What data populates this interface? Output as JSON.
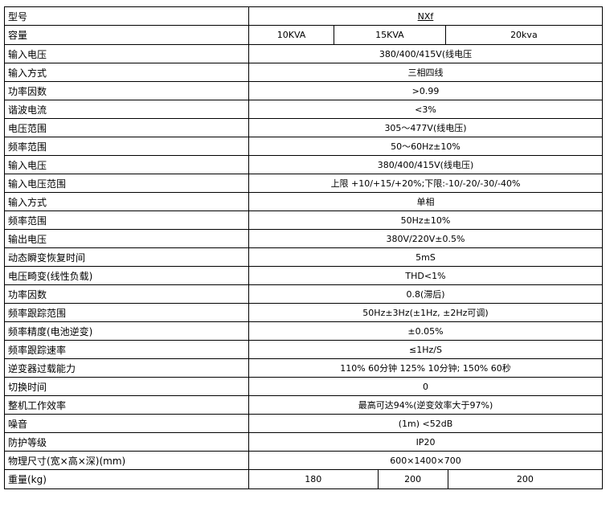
{
  "rows": [
    {
      "label": "型号",
      "value": "NXf"
    },
    {
      "label": "容量",
      "values": [
        "10KVA",
        "15KVA",
        "20kva"
      ]
    },
    {
      "label": "输入电压",
      "value": "380/400/415V(线电压"
    },
    {
      "label": "输入方式",
      "value": "三相四线"
    },
    {
      "label": "功率因数",
      "value": ">0.99"
    },
    {
      "label": "谐波电流",
      "value": "<3%"
    },
    {
      "label": "电压范围",
      "value": "305～477V(线电压)"
    },
    {
      "label": "频率范围",
      "value": "50～60Hz±10%"
    },
    {
      "label": "输入电压",
      "value": "380/400/415V(线电压)"
    },
    {
      "label": "输入电压范围",
      "value": "上限 +10/+15/+20%;下限:-10/-20/-30/-40%"
    },
    {
      "label": "输入方式",
      "value": "单相"
    },
    {
      "label": "频率范围",
      "value": "50Hz±10%"
    },
    {
      "label": "输出电压",
      "value": "380V/220V±0.5%"
    },
    {
      "label": "动态瞬变恢复时间",
      "value": "5mS"
    },
    {
      "label": "电压畸变(线性负载)",
      "value": "THD<1%"
    },
    {
      "label": "功率因数",
      "value": "0.8(滞后)"
    },
    {
      "label": "频率跟踪范围",
      "value": "50Hz±3Hz(±1Hz, ±2Hz可调)"
    },
    {
      "label": "频率精度(电池逆变)",
      "value": "±0.05%"
    },
    {
      "label": "频率跟踪速率",
      "value": "≤1Hz/S"
    },
    {
      "label": "逆变器过载能力",
      "value": "110% 60分钟 125% 10分钟; 150% 60秒"
    },
    {
      "label": "切换时间",
      "value": "0"
    },
    {
      "label": "整机工作效率",
      "value": "最高可达94%(逆变效率大于97%)"
    },
    {
      "label": "噪音",
      "value": "(1m) <52dB"
    },
    {
      "label": "防护等级",
      "value": "IP20"
    },
    {
      "label": "物理尺寸(宽×高×深)(mm)",
      "value": "600×1400×700"
    },
    {
      "label": "重量(kg)",
      "values": [
        "180",
        "200",
        "200"
      ]
    }
  ]
}
